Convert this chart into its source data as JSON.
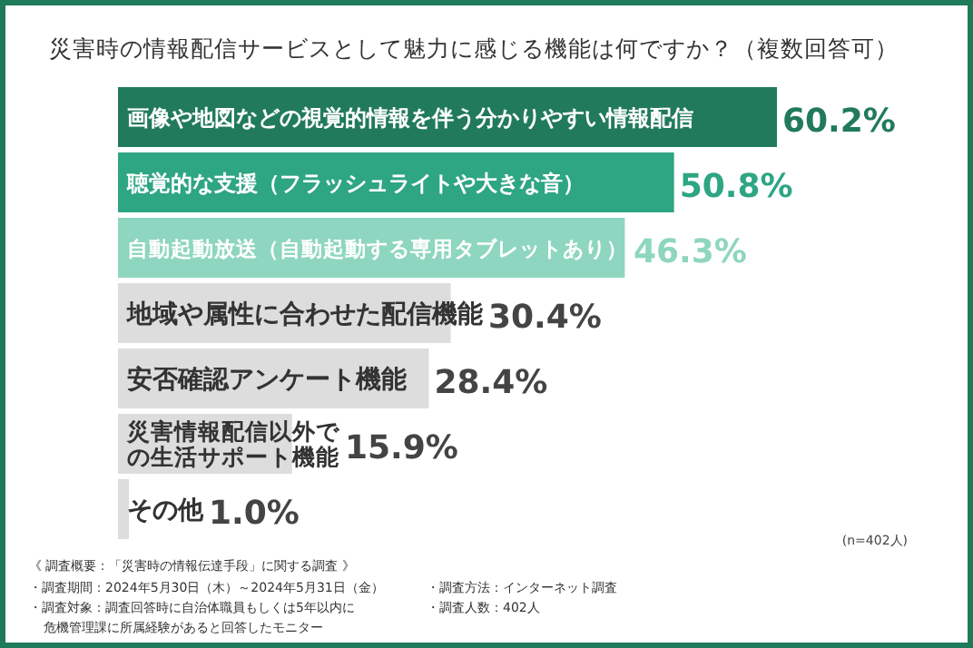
{
  "chart_data": {
    "type": "bar",
    "orientation": "horizontal",
    "title": "災害時の情報配信サービスとして魅力に感じる機能は何ですか？（複数回答可）",
    "categories": [
      "画像や地図などの視覚的情報を伴う分かりやすい情報配信",
      "聴覚的な支援（フラッシュライトや大きな音）",
      "自動起動放送（自動起動する専用タブレットあり）",
      "地域や属性に合わせた配信機能",
      "安否確認アンケート機能",
      "災害情報配信以外での生活サポート機能",
      "その他"
    ],
    "values": [
      60.2,
      50.8,
      46.3,
      30.4,
      28.4,
      15.9,
      1.0
    ],
    "value_labels": [
      "60.2%",
      "50.8%",
      "46.3%",
      "30.4%",
      "28.4%",
      "15.9%",
      "1.0%"
    ],
    "colors": [
      "#217a5b",
      "#2ea583",
      "#8ed6bf",
      "#dddddd",
      "#dddddd",
      "#dddddd",
      "#dddddd"
    ],
    "annotations": [
      "(n=402人)",
      "《 調査概要：「災害時の情報伝達手段」に関する調査 》",
      "・調査期間：2024年5月30日（木）～2024年5月31日（金）",
      "・調査対象：調査回答時に自治体職員もしくは5年以内に危機管理課に所属経験があると回答したモニター",
      "・調査方法：インターネット調査",
      "・調査人数：402人"
    ]
  }
}
